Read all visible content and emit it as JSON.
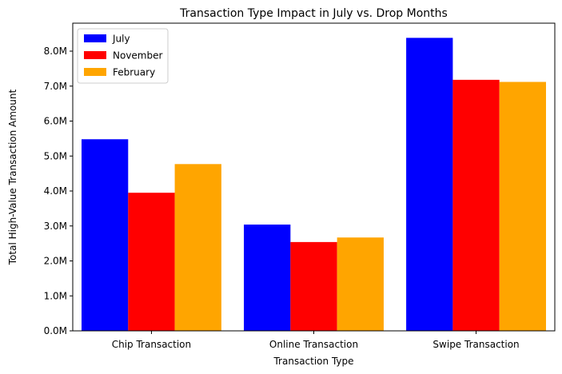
{
  "chart_data": {
    "type": "bar",
    "title": "Transaction Type Impact in July vs. Drop Months",
    "xlabel": "Transaction Type",
    "ylabel": "Total High-Value Transaction Amount",
    "categories": [
      "Chip Transaction",
      "Online Transaction",
      "Swipe Transaction"
    ],
    "series": [
      {
        "name": "July",
        "color": "#0000ff",
        "values": [
          5480000,
          3040000,
          8380000
        ]
      },
      {
        "name": "November",
        "color": "#ff0000",
        "values": [
          3950000,
          2540000,
          7180000
        ]
      },
      {
        "name": "February",
        "color": "#ffa500",
        "values": [
          4770000,
          2670000,
          7120000
        ]
      }
    ],
    "ylim": [
      0,
      8800000
    ],
    "yticks": [
      0,
      1000000,
      2000000,
      3000000,
      4000000,
      5000000,
      6000000,
      7000000,
      8000000
    ],
    "ytick_labels": [
      "0.0M",
      "1.0M",
      "2.0M",
      "3.0M",
      "4.0M",
      "5.0M",
      "6.0M",
      "7.0M",
      "8.0M"
    ],
    "grid": false,
    "legend_position": "top-left"
  }
}
